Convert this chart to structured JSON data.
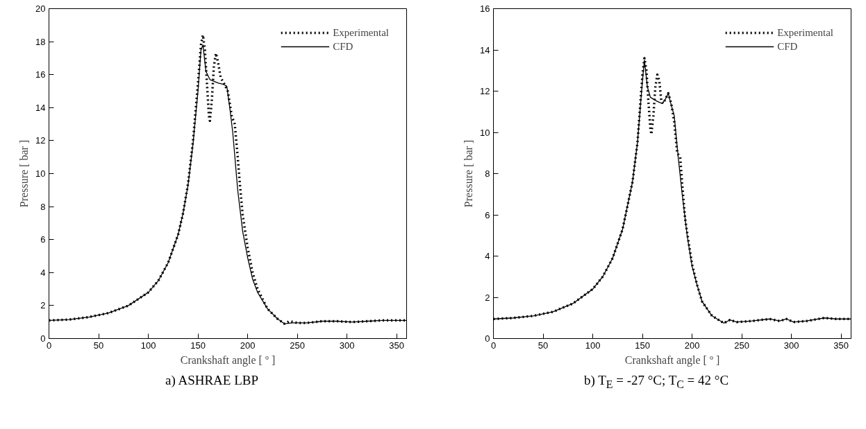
{
  "chart_data": [
    {
      "type": "line",
      "title": "a) ASHRAE LBP",
      "xlabel": "Crankshaft angle [ º ]",
      "ylabel": "Pressure [ bar ]",
      "xlim": [
        0,
        360
      ],
      "xticks": [
        0,
        50,
        100,
        150,
        200,
        250,
        300,
        350
      ],
      "ylim": [
        0,
        20
      ],
      "yticks": [
        0,
        2,
        4,
        6,
        8,
        10,
        12,
        14,
        16,
        18,
        20
      ],
      "grid": false,
      "legend": "top right",
      "series": [
        {
          "name": "Experimental",
          "color": "#000000",
          "line_style": "dotted",
          "x": [
            0,
            20,
            40,
            60,
            80,
            100,
            110,
            120,
            130,
            135,
            140,
            145,
            150,
            153,
            155,
            157,
            159,
            161,
            162,
            164,
            166,
            168,
            170,
            173,
            176,
            180,
            184,
            187,
            190,
            192,
            195,
            200,
            205,
            210,
            220,
            230,
            237,
            242,
            250,
            260,
            275,
            290,
            305,
            320,
            335,
            360
          ],
          "values": [
            1.1,
            1.15,
            1.3,
            1.55,
            2.0,
            2.8,
            3.5,
            4.6,
            6.3,
            7.6,
            9.4,
            12.0,
            15.5,
            17.8,
            18.4,
            17.5,
            15.5,
            13.5,
            13.2,
            14.5,
            16.5,
            17.3,
            16.8,
            15.8,
            15.5,
            15.0,
            13.5,
            13.0,
            11.0,
            9.5,
            7.5,
            5.5,
            4.0,
            3.0,
            1.8,
            1.2,
            0.9,
            1.05,
            0.95,
            0.95,
            1.05,
            1.05,
            1.0,
            1.05,
            1.1,
            1.1
          ]
        },
        {
          "name": "CFD",
          "color": "#000000",
          "line_style": "solid",
          "x": [
            0,
            20,
            40,
            60,
            80,
            100,
            110,
            120,
            130,
            135,
            140,
            145,
            150,
            153,
            155,
            158,
            162,
            170,
            176,
            179,
            182,
            185,
            190,
            195,
            200,
            205,
            210,
            220,
            230,
            237,
            245,
            260,
            275,
            290,
            305,
            320,
            335,
            360
          ],
          "values": [
            1.1,
            1.15,
            1.3,
            1.55,
            2.0,
            2.8,
            3.5,
            4.6,
            6.3,
            7.6,
            9.3,
            11.8,
            15.0,
            17.5,
            17.8,
            16.2,
            15.7,
            15.5,
            15.4,
            15.3,
            14.0,
            12.5,
            9.0,
            6.5,
            4.9,
            3.6,
            2.8,
            1.8,
            1.2,
            0.9,
            0.95,
            0.95,
            1.05,
            1.05,
            1.0,
            1.05,
            1.1,
            1.1
          ]
        }
      ]
    },
    {
      "type": "line",
      "title": "b) T$_{E}$ = -27 °C; T$_{C}$ = 42 °C",
      "xlabel": "Crankshaft angle [ º ]",
      "ylabel": "Pressure [ bar ]",
      "xlim": [
        0,
        360
      ],
      "xticks": [
        0,
        50,
        100,
        150,
        200,
        250,
        300,
        350
      ],
      "ylim": [
        0,
        16
      ],
      "yticks": [
        0,
        2,
        4,
        6,
        8,
        10,
        12,
        14,
        16
      ],
      "grid": false,
      "legend": "top right",
      "series": [
        {
          "name": "Experimental",
          "color": "#000000",
          "line_style": "dotted",
          "x": [
            0,
            20,
            40,
            60,
            80,
            100,
            110,
            120,
            130,
            140,
            145,
            150,
            152,
            154,
            156,
            158,
            159,
            161,
            163,
            165,
            167,
            169,
            171,
            174,
            176,
            179,
            182,
            185,
            188,
            190,
            193,
            197,
            200,
            205,
            210,
            220,
            232,
            238,
            245,
            260,
            278,
            288,
            295,
            302,
            315,
            333,
            345,
            360
          ],
          "values": [
            0.95,
            1.0,
            1.1,
            1.3,
            1.7,
            2.4,
            3.0,
            3.9,
            5.3,
            7.6,
            9.5,
            12.8,
            13.6,
            13.0,
            11.5,
            10.2,
            9.9,
            10.8,
            12.2,
            12.8,
            12.5,
            11.5,
            11.4,
            11.7,
            11.9,
            11.4,
            10.5,
            9.0,
            8.8,
            7.5,
            5.8,
            4.5,
            3.6,
            2.6,
            1.8,
            1.1,
            0.75,
            0.9,
            0.8,
            0.85,
            0.95,
            0.85,
            0.95,
            0.8,
            0.85,
            1.0,
            0.95,
            0.95
          ]
        },
        {
          "name": "CFD",
          "color": "#000000",
          "line_style": "solid",
          "x": [
            0,
            20,
            40,
            60,
            80,
            100,
            110,
            120,
            130,
            140,
            145,
            150,
            152,
            155,
            158,
            165,
            170,
            173,
            176,
            178,
            182,
            186,
            190,
            195,
            200,
            205,
            210,
            220,
            232,
            238,
            245,
            260,
            278,
            288,
            295,
            302,
            315,
            333,
            345,
            360
          ],
          "values": [
            0.95,
            1.0,
            1.1,
            1.3,
            1.7,
            2.4,
            3.0,
            3.9,
            5.3,
            7.6,
            9.5,
            12.5,
            13.5,
            12.2,
            11.7,
            11.5,
            11.4,
            11.6,
            11.9,
            11.5,
            10.8,
            8.8,
            7.0,
            5.0,
            3.5,
            2.6,
            1.8,
            1.1,
            0.75,
            0.9,
            0.8,
            0.85,
            0.95,
            0.85,
            0.95,
            0.8,
            0.85,
            1.0,
            0.95,
            0.95
          ]
        }
      ]
    }
  ]
}
